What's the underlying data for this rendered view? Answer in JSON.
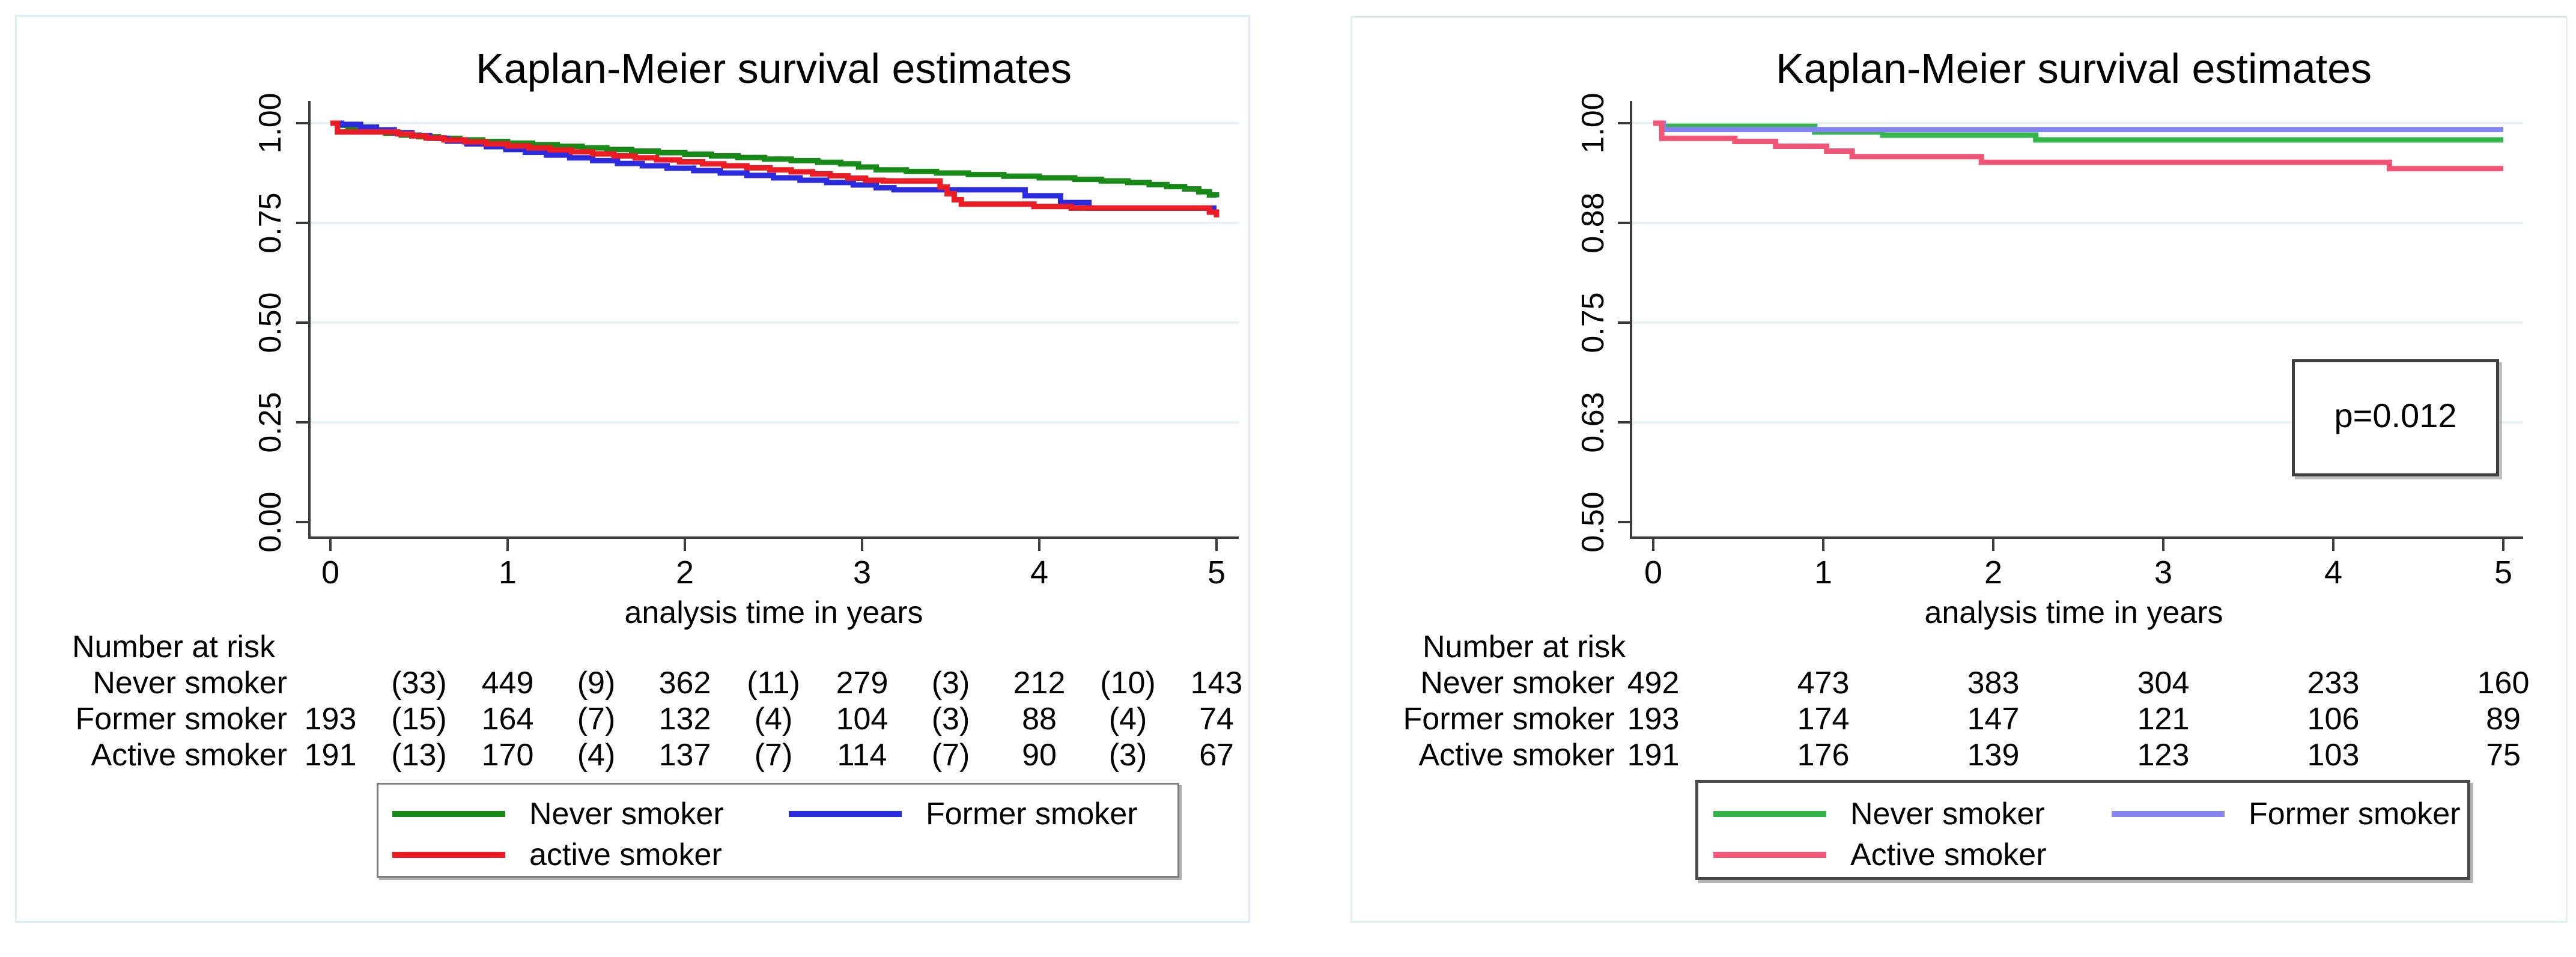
{
  "chart_data": {
    "type": "line",
    "subtype": "kaplan-meier-step",
    "figures": [
      {
        "title": "Kaplan-Meier survival estimates",
        "xlabel": "analysis time in years",
        "xlim": [
          0,
          5
        ],
        "ylim": [
          0.0,
          1.0
        ],
        "grid": true,
        "x_ticks": {
          "values": [
            0,
            1,
            2,
            3,
            4,
            5
          ],
          "labels": [
            "0",
            "1",
            "2",
            "3",
            "4",
            "5"
          ]
        },
        "y_ticks": {
          "values": [
            1.0,
            0.75,
            0.5,
            0.25,
            0.0
          ],
          "labels": [
            "1.00",
            "0.75",
            "0.50",
            "0.25",
            "0.00"
          ]
        },
        "gridline_color": "#e7f1f4",
        "series": [
          {
            "name": "Never smoker",
            "color": "#188A18",
            "points": [
              [
                0,
                1
              ],
              [
                0.05,
                0.995
              ],
              [
                0.1,
                0.99
              ],
              [
                0.16,
                0.985
              ],
              [
                0.23,
                0.98
              ],
              [
                0.31,
                0.975
              ],
              [
                0.4,
                0.97
              ],
              [
                0.5,
                0.966
              ],
              [
                0.61,
                0.962
              ],
              [
                0.73,
                0.958
              ],
              [
                0.86,
                0.954
              ],
              [
                1.0,
                0.95
              ],
              [
                1.14,
                0.946
              ],
              [
                1.28,
                0.942
              ],
              [
                1.42,
                0.938
              ],
              [
                1.56,
                0.934
              ],
              [
                1.7,
                0.93
              ],
              [
                1.85,
                0.926
              ],
              [
                2.0,
                0.922
              ],
              [
                2.15,
                0.918
              ],
              [
                2.3,
                0.914
              ],
              [
                2.45,
                0.91
              ],
              [
                2.6,
                0.906
              ],
              [
                2.75,
                0.902
              ],
              [
                2.88,
                0.898
              ],
              [
                2.98,
                0.89
              ],
              [
                3.08,
                0.883
              ],
              [
                3.25,
                0.879
              ],
              [
                3.42,
                0.875
              ],
              [
                3.6,
                0.871
              ],
              [
                3.8,
                0.867
              ],
              [
                4.0,
                0.863
              ],
              [
                4.2,
                0.859
              ],
              [
                4.35,
                0.855
              ],
              [
                4.5,
                0.851
              ],
              [
                4.62,
                0.846
              ],
              [
                4.72,
                0.841
              ],
              [
                4.82,
                0.835
              ],
              [
                4.9,
                0.828
              ],
              [
                4.96,
                0.82
              ],
              [
                5.0,
                0.814
              ]
            ]
          },
          {
            "name": "Former smoker",
            "color": "#2B2BE0",
            "points": [
              [
                0,
                1
              ],
              [
                0.06,
                0.997
              ],
              [
                0.14,
                0.997
              ],
              [
                0.17,
                0.99
              ],
              [
                0.26,
                0.983
              ],
              [
                0.36,
                0.976
              ],
              [
                0.46,
                0.969
              ],
              [
                0.56,
                0.962
              ],
              [
                0.66,
                0.955
              ],
              [
                0.77,
                0.948
              ],
              [
                0.88,
                0.941
              ],
              [
                0.99,
                0.934
              ],
              [
                1.1,
                0.927
              ],
              [
                1.22,
                0.92
              ],
              [
                1.35,
                0.913
              ],
              [
                1.48,
                0.906
              ],
              [
                1.62,
                0.899
              ],
              [
                1.76,
                0.893
              ],
              [
                1.9,
                0.887
              ],
              [
                2.05,
                0.881
              ],
              [
                2.2,
                0.875
              ],
              [
                2.35,
                0.869
              ],
              [
                2.5,
                0.863
              ],
              [
                2.65,
                0.857
              ],
              [
                2.8,
                0.851
              ],
              [
                2.95,
                0.845
              ],
              [
                3.08,
                0.838
              ],
              [
                3.18,
                0.833
              ],
              [
                3.85,
                0.833
              ],
              [
                3.92,
                0.818
              ],
              [
                4.12,
                0.801
              ],
              [
                4.28,
                0.787
              ],
              [
                5.0,
                0.787
              ]
            ]
          },
          {
            "name": "active smoker",
            "color": "#EC1C24",
            "points": [
              [
                0,
                1
              ],
              [
                0.04,
                0.978
              ],
              [
                0.32,
                0.978
              ],
              [
                0.38,
                0.973
              ],
              [
                0.46,
                0.968
              ],
              [
                0.54,
                0.963
              ],
              [
                0.64,
                0.958
              ],
              [
                0.76,
                0.953
              ],
              [
                0.88,
                0.948
              ],
              [
                1.0,
                0.943
              ],
              [
                1.12,
                0.938
              ],
              [
                1.24,
                0.933
              ],
              [
                1.36,
                0.928
              ],
              [
                1.48,
                0.923
              ],
              [
                1.6,
                0.918
              ],
              [
                1.72,
                0.913
              ],
              [
                1.84,
                0.908
              ],
              [
                1.97,
                0.903
              ],
              [
                2.1,
                0.898
              ],
              [
                2.22,
                0.893
              ],
              [
                2.35,
                0.888
              ],
              [
                2.48,
                0.883
              ],
              [
                2.6,
                0.878
              ],
              [
                2.72,
                0.873
              ],
              [
                2.82,
                0.868
              ],
              [
                2.92,
                0.862
              ],
              [
                3.02,
                0.857
              ],
              [
                3.12,
                0.855
              ],
              [
                3.4,
                0.855
              ],
              [
                3.44,
                0.84
              ],
              [
                3.48,
                0.823
              ],
              [
                3.52,
                0.808
              ],
              [
                3.56,
                0.797
              ],
              [
                3.92,
                0.797
              ],
              [
                3.97,
                0.791
              ],
              [
                4.18,
                0.787
              ],
              [
                4.93,
                0.787
              ],
              [
                4.96,
                0.777
              ],
              [
                5.0,
                0.764
              ]
            ]
          }
        ],
        "legend": {
          "position": "bottom",
          "entries": [
            {
              "label": "Never smoker",
              "color": "#188A18"
            },
            {
              "label": "Former smoker",
              "color": "#2B2BE0"
            },
            {
              "label": "active smoker",
              "color": "#EC1C24"
            }
          ]
        },
        "risk_table": {
          "header": "Number at risk",
          "time_columns": [
            0,
            0.5,
            1,
            1.5,
            2,
            2.5,
            3,
            3.5,
            4,
            4.5,
            5
          ],
          "rows": [
            {
              "label": "Never smoker",
              "values": [
                "",
                "(33)",
                "449",
                "(9)",
                "362",
                "(11)",
                "279",
                "(3)",
                "212",
                "(10)",
                "143"
              ]
            },
            {
              "label": "Former smoker",
              "values": [
                "193",
                "(15)",
                "164",
                "(7)",
                "132",
                "(4)",
                "104",
                "(3)",
                "88",
                "(4)",
                "74"
              ]
            },
            {
              "label": "Active smoker",
              "values": [
                "191",
                "(13)",
                "170",
                "(4)",
                "137",
                "(7)",
                "114",
                "(7)",
                "90",
                "(3)",
                "67"
              ]
            }
          ]
        },
        "p_label": null
      },
      {
        "title": "Kaplan-Meier survival estimates",
        "xlabel": "analysis time in years",
        "xlim": [
          0,
          5
        ],
        "ylim": [
          0.5,
          1.0
        ],
        "grid": true,
        "x_ticks": {
          "values": [
            0,
            1,
            2,
            3,
            4,
            5
          ],
          "labels": [
            "0",
            "1",
            "2",
            "3",
            "4",
            "5"
          ]
        },
        "y_ticks": {
          "values": [
            1.0,
            0.875,
            0.75,
            0.625,
            0.5
          ],
          "labels": [
            "1.00",
            "0.88",
            "0.75",
            "0.63",
            "0.50"
          ]
        },
        "gridline_color": "#e7f1f4",
        "series": [
          {
            "name": "Never smoker",
            "color": "#33B34A",
            "points": [
              [
                0,
                1
              ],
              [
                0.06,
                0.996
              ],
              [
                0.9,
                0.996
              ],
              [
                0.95,
                0.989
              ],
              [
                1.3,
                0.989
              ],
              [
                1.35,
                0.985
              ],
              [
                2.2,
                0.985
              ],
              [
                2.25,
                0.979
              ],
              [
                5,
                0.979
              ]
            ]
          },
          {
            "name": "Former smoker",
            "color": "#8484F0",
            "points": [
              [
                0,
                1
              ],
              [
                0.06,
                0.992
              ],
              [
                5,
                0.992
              ]
            ]
          },
          {
            "name": "Active smoker",
            "color": "#F05575",
            "points": [
              [
                0,
                1
              ],
              [
                0.05,
                0.981
              ],
              [
                0.45,
                0.981
              ],
              [
                0.48,
                0.977
              ],
              [
                0.68,
                0.977
              ],
              [
                0.72,
                0.971
              ],
              [
                0.98,
                0.971
              ],
              [
                1.02,
                0.965
              ],
              [
                1.13,
                0.965
              ],
              [
                1.17,
                0.958
              ],
              [
                1.88,
                0.958
              ],
              [
                1.93,
                0.951
              ],
              [
                4.28,
                0.951
              ],
              [
                4.33,
                0.943
              ],
              [
                5,
                0.943
              ]
            ]
          }
        ],
        "legend": {
          "position": "bottom",
          "entries": [
            {
              "label": "Never smoker",
              "color": "#33B34A"
            },
            {
              "label": "Former smoker",
              "color": "#8484F0"
            },
            {
              "label": "Active smoker",
              "color": "#F05575"
            }
          ]
        },
        "risk_table": {
          "header": "Number at risk",
          "time_columns": [
            0,
            1,
            2,
            3,
            4,
            5
          ],
          "rows": [
            {
              "label": "Never smoker",
              "values": [
                "492",
                "473",
                "383",
                "304",
                "233",
                "160"
              ]
            },
            {
              "label": "Former smoker",
              "values": [
                "193",
                "174",
                "147",
                "121",
                "106",
                "89"
              ]
            },
            {
              "label": "Active smoker",
              "values": [
                "191",
                "176",
                "139",
                "123",
                "103",
                "75"
              ]
            }
          ]
        },
        "p_label": "p=0.012"
      }
    ]
  }
}
